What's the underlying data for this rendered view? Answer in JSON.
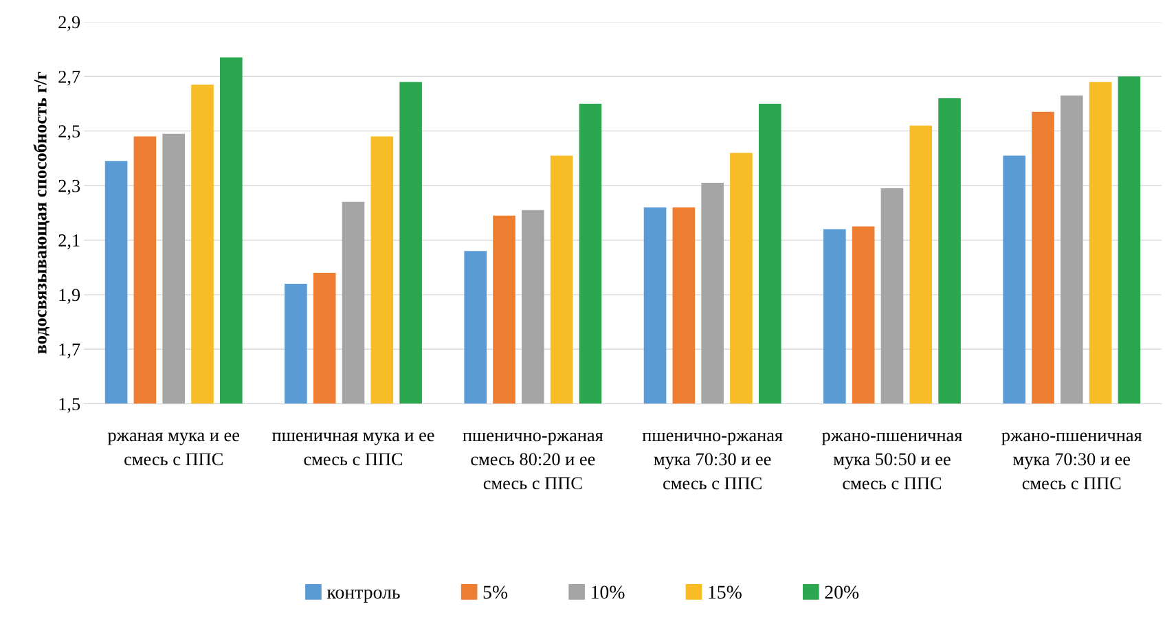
{
  "chart_data": {
    "type": "bar",
    "ylabel": "водосвязывающая способность г/г",
    "categories": [
      "ржаная мука и ее\nсмесь с ППС",
      "пшеничная мука и ее\nсмесь с ППС",
      "пшенично-ржаная\nсмесь 80:20 и ее\nсмесь с ППС",
      "пшенично-ржаная\nмука 70:30 и ее\nсмесь с ППС",
      "ржано-пшеничная\nмука 50:50 и ее\nсмесь с ППС",
      "ржано-пшеничная\nмука 70:30 и ее\nсмесь с ППС"
    ],
    "series": [
      {
        "name": "контроль",
        "color": "#5b9bd5",
        "values": [
          2.39,
          1.94,
          2.06,
          2.22,
          2.14,
          2.41
        ]
      },
      {
        "name": "5%",
        "color": "#ed7d31",
        "values": [
          2.48,
          1.98,
          2.19,
          2.22,
          2.15,
          2.57
        ]
      },
      {
        "name": "10%",
        "color": "#a5a5a5",
        "values": [
          2.49,
          2.24,
          2.21,
          2.31,
          2.29,
          2.63
        ]
      },
      {
        "name": "15%",
        "color": "#f7bc26",
        "values": [
          2.67,
          2.48,
          2.41,
          2.42,
          2.52,
          2.68
        ]
      },
      {
        "name": "20%",
        "color": "#2ba84f",
        "values": [
          2.77,
          2.68,
          2.6,
          2.6,
          2.62,
          2.7
        ]
      }
    ],
    "ylim": [
      1.5,
      2.9
    ],
    "yticks": [
      {
        "value": 1.5,
        "label": "1,5"
      },
      {
        "value": 1.7,
        "label": "1,7"
      },
      {
        "value": 1.9,
        "label": "1,9"
      },
      {
        "value": 2.1,
        "label": "2,1"
      },
      {
        "value": 2.3,
        "label": "2,3"
      },
      {
        "value": 2.5,
        "label": "2,5"
      },
      {
        "value": 2.7,
        "label": "2,7"
      },
      {
        "value": 2.9,
        "label": "2,9"
      }
    ],
    "grid": "y",
    "legend": "bottom"
  }
}
